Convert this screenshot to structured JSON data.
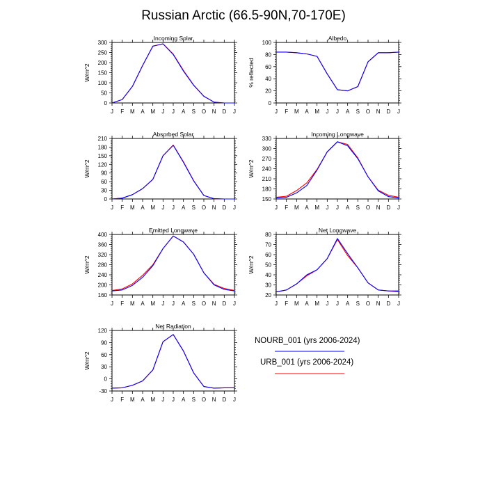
{
  "figure": {
    "title": "Russian Arctic (66.5-90N,70-170E)"
  },
  "legend": [
    {
      "label": "NOURB_001 (yrs 2006-2024)",
      "color": "#0000ff"
    },
    {
      "label": "URB_001 (yrs 2006-2024)",
      "color": "#ff0000"
    }
  ],
  "chart_data": [
    {
      "type": "line",
      "title": "Incoming Solar",
      "xlabel": "",
      "ylabel": "W/m^2",
      "categories": [
        "J",
        "F",
        "M",
        "A",
        "M",
        "J",
        "J",
        "A",
        "S",
        "O",
        "N",
        "D",
        "J"
      ],
      "ylim": [
        0,
        300
      ],
      "yticks": [
        "0",
        "50",
        "100",
        "150",
        "200",
        "250",
        "300"
      ],
      "grid": false,
      "series": [
        {
          "name": "NOURB_001 (yrs 2006-2024)",
          "color": "#0000ff",
          "values": [
            0,
            17,
            82,
            186,
            281,
            293,
            240,
            158,
            88,
            33,
            4,
            0,
            0
          ]
        },
        {
          "name": "URB_001 (yrs 2006-2024)",
          "color": "#ff0000",
          "values": [
            0,
            17,
            82,
            186,
            282,
            293,
            242,
            161,
            89,
            33,
            4,
            0,
            0
          ]
        }
      ]
    },
    {
      "type": "line",
      "title": "Albedo",
      "xlabel": "",
      "ylabel": "% reflected",
      "categories": [
        "J",
        "F",
        "M",
        "A",
        "M",
        "J",
        "J",
        "A",
        "S",
        "O",
        "N",
        "D",
        "J"
      ],
      "ylim": [
        0,
        100
      ],
      "yticks": [
        "0",
        "20",
        "40",
        "60",
        "80",
        "100"
      ],
      "grid": false,
      "series": [
        {
          "name": "NOURB_001 (yrs 2006-2024)",
          "color": "#0000ff",
          "values": [
            84,
            84,
            83,
            81,
            77,
            48,
            22,
            20,
            27,
            68,
            83,
            83,
            84
          ]
        },
        {
          "name": "URB_001 (yrs 2006-2024)",
          "color": "#ff0000",
          "values": [
            84,
            84,
            83,
            81,
            77,
            48,
            22,
            20,
            27,
            68,
            83,
            83,
            84
          ]
        }
      ]
    },
    {
      "type": "line",
      "title": "Absorbed Solar",
      "xlabel": "",
      "ylabel": "W/m^2",
      "categories": [
        "J",
        "F",
        "M",
        "A",
        "M",
        "J",
        "J",
        "A",
        "S",
        "O",
        "N",
        "D",
        "J"
      ],
      "ylim": [
        0,
        210
      ],
      "yticks": [
        "0",
        "30",
        "60",
        "90",
        "120",
        "150",
        "180",
        "210"
      ],
      "grid": false,
      "series": [
        {
          "name": "NOURB_001 (yrs 2006-2024)",
          "color": "#0000ff",
          "values": [
            0,
            3,
            15,
            36,
            68,
            150,
            186,
            127,
            63,
            12,
            1,
            0,
            0
          ]
        },
        {
          "name": "URB_001 (yrs 2006-2024)",
          "color": "#ff0000",
          "values": [
            0,
            3,
            15,
            36,
            68,
            150,
            187,
            129,
            64,
            12,
            1,
            0,
            0
          ]
        }
      ]
    },
    {
      "type": "line",
      "title": "Incoming Longwave",
      "xlabel": "",
      "ylabel": "W/m^2",
      "categories": [
        "J",
        "F",
        "M",
        "A",
        "M",
        "J",
        "J",
        "A",
        "S",
        "O",
        "N",
        "D",
        "J"
      ],
      "ylim": [
        150,
        330
      ],
      "yticks": [
        "150",
        "180",
        "210",
        "240",
        "270",
        "300",
        "330"
      ],
      "grid": false,
      "series": [
        {
          "name": "NOURB_001 (yrs 2006-2024)",
          "color": "#0000ff",
          "values": [
            153,
            155,
            168,
            190,
            236,
            290,
            320,
            308,
            270,
            216,
            174,
            157,
            153
          ]
        },
        {
          "name": "URB_001 (yrs 2006-2024)",
          "color": "#ff0000",
          "values": [
            155,
            158,
            175,
            198,
            238,
            290,
            320,
            312,
            272,
            216,
            176,
            161,
            155
          ]
        }
      ]
    },
    {
      "type": "line",
      "title": "Emitted Longwave",
      "xlabel": "",
      "ylabel": "W/m^2",
      "categories": [
        "J",
        "F",
        "M",
        "A",
        "M",
        "J",
        "J",
        "A",
        "S",
        "O",
        "N",
        "D",
        "J"
      ],
      "ylim": [
        160,
        400
      ],
      "yticks": [
        "160",
        "200",
        "240",
        "280",
        "320",
        "360",
        "400"
      ],
      "grid": false,
      "series": [
        {
          "name": "NOURB_001 (yrs 2006-2024)",
          "color": "#0000ff",
          "values": [
            176,
            180,
            198,
            230,
            276,
            344,
            394,
            370,
            322,
            248,
            200,
            182,
            176
          ]
        },
        {
          "name": "URB_001 (yrs 2006-2024)",
          "color": "#ff0000",
          "values": [
            178,
            184,
            204,
            238,
            280,
            344,
            394,
            370,
            322,
            248,
            202,
            186,
            178
          ]
        }
      ]
    },
    {
      "type": "line",
      "title": "Net Longwave",
      "xlabel": "",
      "ylabel": "W/m^2",
      "categories": [
        "J",
        "F",
        "M",
        "A",
        "M",
        "J",
        "J",
        "A",
        "S",
        "O",
        "N",
        "D",
        "J"
      ],
      "ylim": [
        20,
        80
      ],
      "yticks": [
        "20",
        "30",
        "40",
        "50",
        "60",
        "70",
        "80"
      ],
      "grid": false,
      "series": [
        {
          "name": "NOURB_001 (yrs 2006-2024)",
          "color": "#0000ff",
          "values": [
            23,
            25,
            31,
            40,
            45,
            56,
            76,
            61,
            47,
            32,
            25,
            24,
            24
          ]
        },
        {
          "name": "URB_001 (yrs 2006-2024)",
          "color": "#ff0000",
          "values": [
            23,
            25,
            31,
            39,
            45,
            56,
            75,
            59,
            47,
            32,
            25,
            24,
            23
          ]
        }
      ]
    },
    {
      "type": "line",
      "title": "Net Radiation",
      "xlabel": "",
      "ylabel": "W/m^2",
      "categories": [
        "J",
        "F",
        "M",
        "A",
        "M",
        "J",
        "J",
        "A",
        "S",
        "O",
        "N",
        "D",
        "J"
      ],
      "ylim": [
        -30,
        120
      ],
      "yticks": [
        "-30",
        "0",
        "30",
        "60",
        "90",
        "120"
      ],
      "grid": false,
      "series": [
        {
          "name": "NOURB_001 (yrs 2006-2024)",
          "color": "#0000ff",
          "values": [
            -23,
            -22,
            -16,
            -5,
            22,
            92,
            110,
            69,
            15,
            -19,
            -23,
            -22,
            -22
          ]
        },
        {
          "name": "URB_001 (yrs 2006-2024)",
          "color": "#ff0000",
          "values": [
            -23,
            -22,
            -16,
            -5,
            22,
            92,
            110,
            69,
            15,
            -19,
            -23,
            -22,
            -22
          ]
        }
      ]
    }
  ]
}
